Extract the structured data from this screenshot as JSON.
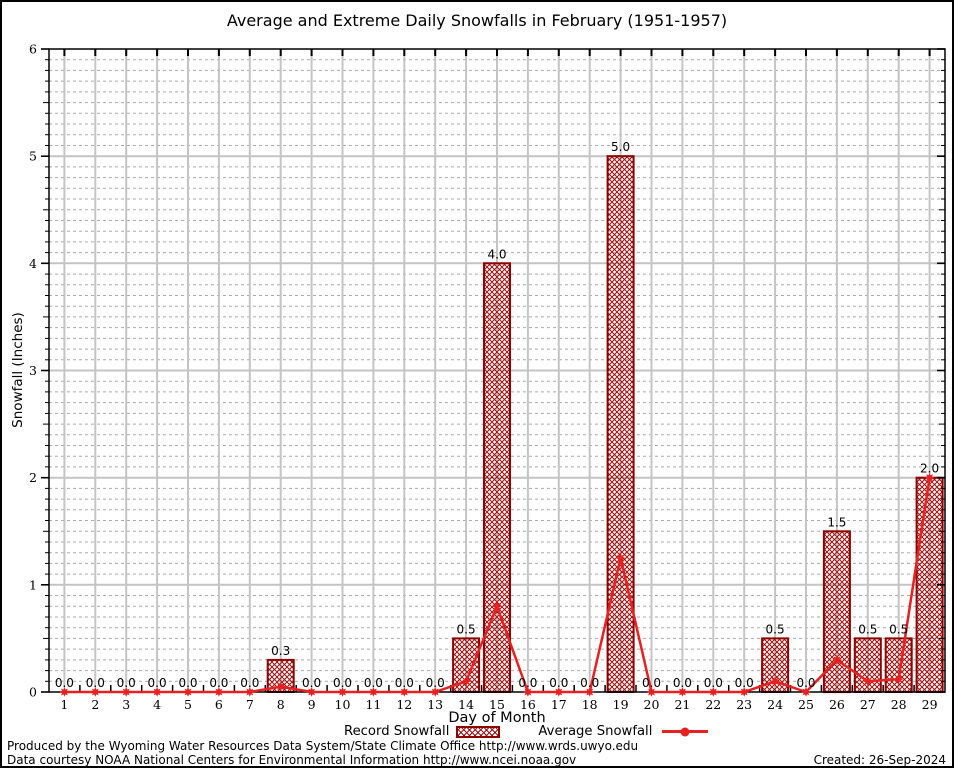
{
  "page": {
    "footer_line1": "Produced by the Wyoming Water Resources Data System/State Climate Office http://www.wrds.uwyo.edu",
    "footer_line2": "Data courtesy NOAA National Centers for Environmental Information http://www.ncei.noaa.gov",
    "created": "Created: 26-Sep-2024"
  },
  "colors": {
    "bar_edge": "#8b0000",
    "bar_hatch": "#9b1111",
    "line": "#e82020",
    "grid_major": "#c4c4c4",
    "grid_minor": "#ababab",
    "frame": "#000000",
    "text": "#000000"
  },
  "chart_data": {
    "type": "bar",
    "title": "Average and Extreme Daily Snowfalls in February (1951-1957)",
    "xlabel": "Day of Month",
    "ylabel": "Snowfall (Inches)",
    "ylim": [
      0,
      6
    ],
    "y_major_step": 1,
    "y_minor_step": 0.1,
    "grid": "major-solid, minor-dashed",
    "legend_position": "bottom",
    "x": [
      1,
      2,
      3,
      4,
      5,
      6,
      7,
      8,
      9,
      10,
      11,
      12,
      13,
      14,
      15,
      16,
      17,
      18,
      19,
      20,
      21,
      22,
      23,
      24,
      25,
      26,
      27,
      28,
      29
    ],
    "series": [
      {
        "name": "Record Snowfall",
        "type": "bar",
        "values": [
          0,
          0,
          0,
          0,
          0,
          0,
          0,
          0.3,
          0,
          0,
          0,
          0,
          0,
          0.5,
          4.0,
          0,
          0,
          0,
          5.0,
          0,
          0,
          0,
          0,
          0.5,
          0,
          1.5,
          0.5,
          0.5,
          2.0
        ],
        "labels": [
          "0.0",
          "0.0",
          "0.0",
          "0.0",
          "0.0",
          "0.0",
          "0.0",
          "0.3",
          "0.0",
          "0.0",
          "0.0",
          "0.0",
          "0.0",
          "0.5",
          "4.0",
          "0.0",
          "0.0",
          "0.0",
          "5.0",
          "0.0",
          "0.0",
          "0.0",
          "0.0",
          "0.5",
          "0.0",
          "1.5",
          "0.5",
          "0.5",
          "2.0"
        ]
      },
      {
        "name": "Average Snowfall",
        "type": "line",
        "values": [
          0,
          0,
          0,
          0,
          0,
          0,
          0,
          0.05,
          0,
          0,
          0,
          0,
          0,
          0.1,
          0.8,
          0,
          0,
          0,
          1.25,
          0,
          0,
          0,
          0,
          0.1,
          0,
          0.3,
          0.1,
          0.12,
          2.0
        ]
      }
    ]
  }
}
